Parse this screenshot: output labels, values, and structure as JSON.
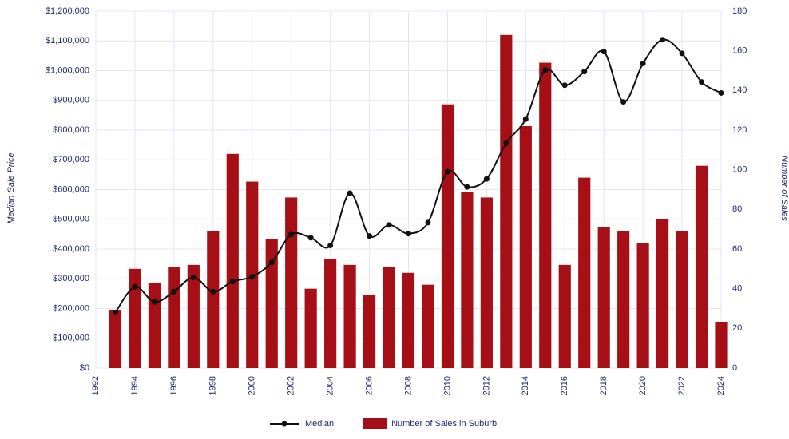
{
  "chart_data": {
    "type": "combo",
    "x": [
      1993,
      1994,
      1995,
      1996,
      1997,
      1998,
      1999,
      2000,
      2001,
      2002,
      2003,
      2004,
      2005,
      2006,
      2007,
      2008,
      2009,
      2010,
      2011,
      2012,
      2013,
      2014,
      2015,
      2016,
      2017,
      2018,
      2019,
      2020,
      2021,
      2022,
      2023,
      2024
    ],
    "series": [
      {
        "name": "Median",
        "type": "line",
        "color": "#111111",
        "values": [
          187000,
          273000,
          222000,
          257000,
          305000,
          257000,
          291000,
          307000,
          355000,
          449000,
          438000,
          412000,
          588000,
          444000,
          481000,
          452000,
          489000,
          660000,
          609000,
          636000,
          756000,
          837000,
          1002000,
          951000,
          997000,
          1064000,
          895000,
          1024000,
          1104000,
          1058000,
          962000,
          925000
        ]
      },
      {
        "name": "Number of Sales in Suburb",
        "type": "bar",
        "color": "#a50f15",
        "axis": "y2",
        "values": [
          29,
          50,
          43,
          51,
          52,
          69,
          108,
          94,
          65,
          86,
          40,
          55,
          52,
          37,
          51,
          48,
          42,
          133,
          89,
          86,
          168,
          122,
          154,
          52,
          96,
          71,
          69,
          63,
          75,
          69,
          102,
          23
        ]
      }
    ],
    "xlim": [
      1992,
      2024
    ],
    "xticks": [
      1992,
      1994,
      1996,
      1998,
      2000,
      2002,
      2004,
      2006,
      2008,
      2010,
      2012,
      2014,
      2016,
      2018,
      2020,
      2022,
      2024
    ],
    "ylim": [
      0,
      1200000
    ],
    "yticks": [
      {
        "value": 0,
        "label": "$0"
      },
      {
        "value": 100000,
        "label": "$100,000"
      },
      {
        "value": 200000,
        "label": "$200,000"
      },
      {
        "value": 300000,
        "label": "$300,000"
      },
      {
        "value": 400000,
        "label": "$400,000"
      },
      {
        "value": 500000,
        "label": "$500,000"
      },
      {
        "value": 600000,
        "label": "$600,000"
      },
      {
        "value": 700000,
        "label": "$700,000"
      },
      {
        "value": 800000,
        "label": "$800,000"
      },
      {
        "value": 900000,
        "label": "$900,000"
      },
      {
        "value": 1000000,
        "label": "$1,000,000"
      },
      {
        "value": 1100000,
        "label": "$1,100,000"
      },
      {
        "value": 1200000,
        "label": "$1,200,000"
      }
    ],
    "y2lim": [
      0,
      180
    ],
    "y2ticks": [
      0,
      20,
      40,
      60,
      80,
      100,
      120,
      140,
      160,
      180
    ],
    "ylabel": "Median Sale Price",
    "y2label": "Number of Sales",
    "grid": true,
    "legend": "bottom"
  }
}
